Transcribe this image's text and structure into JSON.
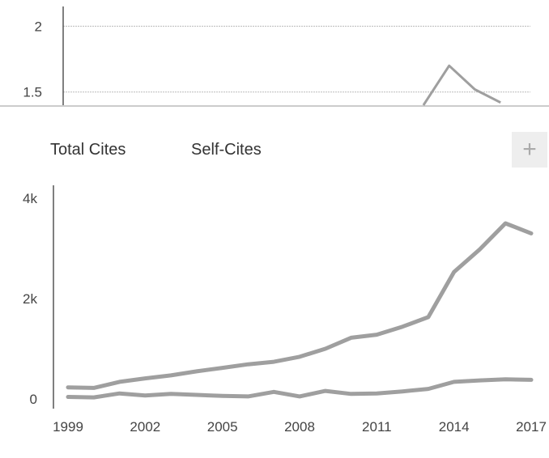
{
  "colors": {
    "series_line": "#9f9f9f",
    "axis": "#555555",
    "gridline": "#bbbbbb",
    "plus_button_bg": "#eeeeee",
    "plus_button_fg": "#aaaaaa"
  },
  "plus_button": {
    "label": "+",
    "icon": "plus-icon"
  },
  "chart_data": [
    {
      "type": "line",
      "partial": true,
      "grid": true,
      "yticks": [
        "2",
        "1.5"
      ],
      "ylim": [
        1.4,
        2.15
      ],
      "x_range": [
        1999,
        2017
      ],
      "series": [
        {
          "x": [
            2013,
            2014,
            2015,
            2016
          ],
          "values": [
            1.4,
            1.7,
            1.52,
            1.42
          ]
        }
      ]
    },
    {
      "type": "line",
      "legend": [
        "Total Cites",
        "Self-Cites"
      ],
      "legend_placement": "top-left",
      "grid": false,
      "xticks": [
        "1999",
        "2002",
        "2005",
        "2008",
        "2011",
        "2014",
        "2017"
      ],
      "yticks": [
        "4k",
        "2k",
        "0"
      ],
      "ylim": [
        0,
        4000
      ],
      "x": [
        1999,
        2000,
        2001,
        2002,
        2003,
        2004,
        2005,
        2006,
        2007,
        2008,
        2009,
        2010,
        2011,
        2012,
        2013,
        2014,
        2015,
        2016,
        2017
      ],
      "series": [
        {
          "values": [
            230,
            220,
            340,
            410,
            470,
            550,
            620,
            690,
            740,
            840,
            1000,
            1220,
            1280,
            1440,
            1630,
            2530,
            2980,
            3500,
            3300
          ]
        },
        {
          "values": [
            40,
            30,
            110,
            70,
            100,
            80,
            60,
            50,
            140,
            50,
            160,
            100,
            110,
            150,
            200,
            340,
            370,
            390,
            380
          ]
        }
      ]
    }
  ]
}
